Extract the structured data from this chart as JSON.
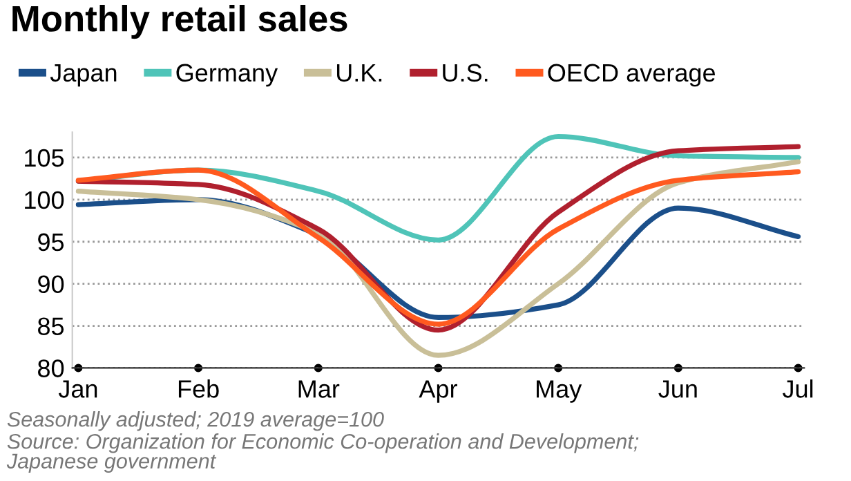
{
  "chart_data": {
    "type": "line",
    "title": "Monthly retail sales",
    "categories": [
      "Jan",
      "Feb",
      "Mar",
      "Apr",
      "May",
      "Jun",
      "Jul"
    ],
    "series": [
      {
        "name": "Japan",
        "color": "#1b4f8a",
        "values": [
          99.4,
          100.0,
          95.8,
          86.0,
          87.5,
          99.0,
          95.6
        ]
      },
      {
        "name": "Germany",
        "color": "#4fc4b8",
        "values": [
          102.2,
          103.5,
          101.0,
          95.2,
          107.5,
          105.2,
          105.0
        ]
      },
      {
        "name": "U.K.",
        "color": "#c9bf98",
        "values": [
          101.0,
          100.0,
          96.0,
          81.5,
          90.0,
          102.0,
          104.5
        ]
      },
      {
        "name": "U.S.",
        "color": "#b0202e",
        "values": [
          102.2,
          101.8,
          96.5,
          84.5,
          98.5,
          105.8,
          106.3
        ]
      },
      {
        "name": "OECD average",
        "color": "#ff5a1f",
        "values": [
          102.3,
          103.5,
          95.5,
          85.2,
          96.5,
          102.3,
          103.3
        ]
      }
    ],
    "ylim": [
      80,
      108
    ],
    "yticks": [
      80,
      85,
      90,
      95,
      100,
      105
    ],
    "grid": "y",
    "legend": "top left",
    "marker": "none",
    "line_style": "solid",
    "annotations": [
      "Seasonally adjusted; 2019 average=100",
      "Source: Organization for Economic Co-operation and Development;\nJapanese government"
    ]
  }
}
